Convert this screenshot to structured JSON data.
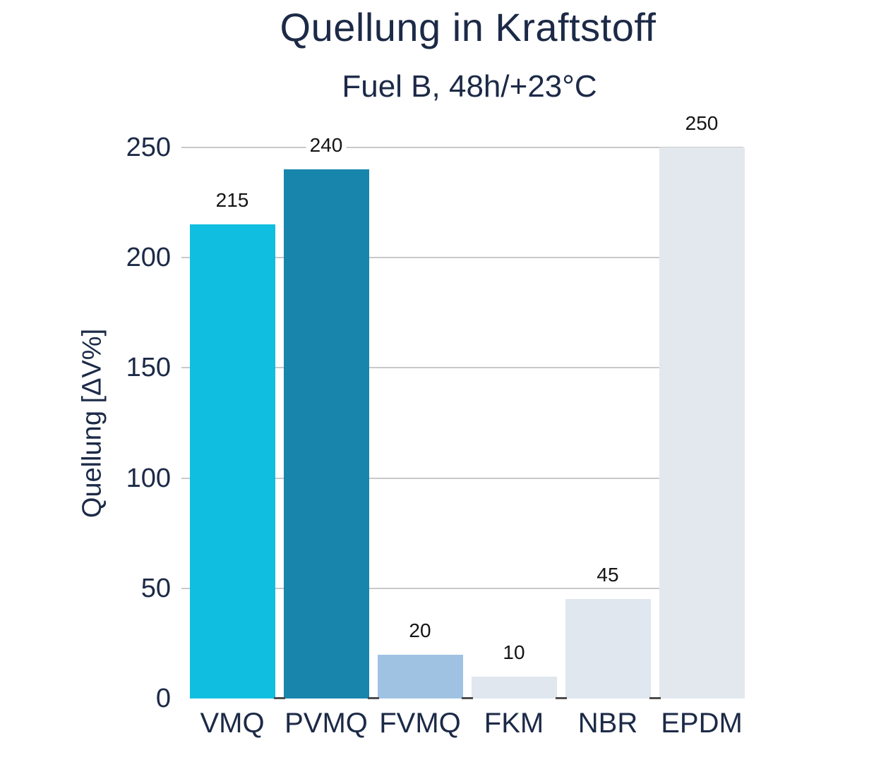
{
  "title": "Quellung in Kraftstoff",
  "subtitle": "Fuel B, 48h/+23°C",
  "colors": {
    "background": "#ffffff",
    "heading_text": "#1c2a47",
    "axis_text": "#1c2a47",
    "value_label_text": "#141414",
    "gridline": "#c9c9c9",
    "axis_tick": "#4d4d4d"
  },
  "chart_data": {
    "type": "bar",
    "title": "Quellung in Kraftstoff",
    "subtitle": "Fuel B, 48h/+23°C",
    "xlabel": "",
    "ylabel": "Quellung [ΔV%]",
    "categories": [
      "VMQ",
      "PVMQ",
      "FVMQ",
      "FKM",
      "NBR",
      "EPDM"
    ],
    "values": [
      215,
      240,
      20,
      10,
      45,
      250
    ],
    "value_labels": [
      "215",
      "240",
      "20",
      "10",
      "45",
      "250"
    ],
    "bar_colors": [
      "#10bfe0",
      "#1886ac",
      "#a0c2e2",
      "#e0e7ee",
      "#e0e7ee",
      "#e2e8ee"
    ],
    "ylim": [
      0,
      250
    ],
    "yticks": [
      0,
      50,
      100,
      150,
      200,
      250
    ],
    "grid": true,
    "legend": "none"
  }
}
